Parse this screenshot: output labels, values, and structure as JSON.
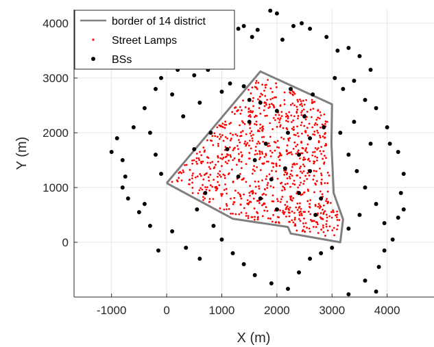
{
  "chart_data": {
    "type": "scatter",
    "xlabel": "X (m)",
    "ylabel": "Y (m)",
    "xlim": [
      -1680,
      4850
    ],
    "ylim": [
      -1000,
      4250
    ],
    "x_ticks": [
      -1000,
      0,
      1000,
      2000,
      3000,
      4000
    ],
    "y_ticks": [
      0,
      1000,
      2000,
      3000,
      4000
    ],
    "grid": true,
    "legend_placement": "top-left",
    "legend": [
      {
        "key": "border",
        "label": "border of 14 district",
        "color": "#7f7f7f"
      },
      {
        "key": "lamps",
        "label": "Street Lamps",
        "color": "#ff0000"
      },
      {
        "key": "bss",
        "label": "BSs",
        "color": "#000000"
      }
    ],
    "series": [
      {
        "name": "border of 14 district",
        "kind": "line",
        "color": "#7f7f7f",
        "points": [
          [
            0,
            1080
          ],
          [
            1700,
            3120
          ],
          [
            3000,
            2520
          ],
          [
            2990,
            1800
          ],
          [
            3030,
            900
          ],
          [
            3200,
            420
          ],
          [
            3150,
            0
          ],
          [
            2250,
            160
          ],
          [
            2200,
            280
          ],
          [
            1200,
            430
          ],
          [
            0,
            1080
          ]
        ]
      },
      {
        "name": "Street Lamps",
        "kind": "scatter",
        "color": "#ff0000",
        "count": 900,
        "seed": 14,
        "polygon": [
          [
            60,
            1090
          ],
          [
            1690,
            3040
          ],
          [
            2930,
            2480
          ],
          [
            2920,
            1800
          ],
          [
            2970,
            900
          ],
          [
            3140,
            430
          ],
          [
            3090,
            70
          ],
          [
            2280,
            200
          ],
          [
            2220,
            320
          ],
          [
            1210,
            470
          ],
          [
            60,
            1090
          ]
        ]
      },
      {
        "name": "BSs",
        "kind": "scatter",
        "color": "#000000",
        "points": [
          [
            1880,
            4230
          ],
          [
            2000,
            4180
          ],
          [
            1300,
            3900
          ],
          [
            1400,
            3950
          ],
          [
            1550,
            3750
          ],
          [
            1650,
            3880
          ],
          [
            2100,
            3700
          ],
          [
            2300,
            3950
          ],
          [
            2450,
            4000
          ],
          [
            2600,
            3900
          ],
          [
            2900,
            3750
          ],
          [
            3100,
            3500
          ],
          [
            3300,
            3550
          ],
          [
            3500,
            3400
          ],
          [
            3700,
            3150
          ],
          [
            -100,
            3000
          ],
          [
            200,
            3150
          ],
          [
            500,
            3050
          ],
          [
            750,
            3150
          ],
          [
            900,
            3200
          ],
          [
            1000,
            2750
          ],
          [
            1150,
            2900
          ],
          [
            1400,
            2850
          ],
          [
            1500,
            2600
          ],
          [
            1700,
            2550
          ],
          [
            2000,
            2400
          ],
          [
            2250,
            2800
          ],
          [
            2500,
            2300
          ],
          [
            2650,
            2700
          ],
          [
            2850,
            2100
          ],
          [
            3050,
            3000
          ],
          [
            3200,
            2800
          ],
          [
            3400,
            2950
          ],
          [
            3600,
            2600
          ],
          [
            3800,
            2450
          ],
          [
            4000,
            2100
          ],
          [
            4050,
            1800
          ],
          [
            4200,
            1650
          ],
          [
            4300,
            1250
          ],
          [
            4250,
            900
          ],
          [
            4200,
            450
          ],
          [
            3950,
            350
          ],
          [
            3800,
            700
          ],
          [
            3600,
            1000
          ],
          [
            3450,
            1300
          ],
          [
            3300,
            1600
          ],
          [
            3150,
            2000
          ],
          [
            3400,
            2200
          ],
          [
            -1000,
            1650
          ],
          [
            -900,
            1900
          ],
          [
            -800,
            1500
          ],
          [
            -750,
            1200
          ],
          [
            -600,
            2100
          ],
          [
            -400,
            2450
          ],
          [
            -300,
            2000
          ],
          [
            -200,
            1600
          ],
          [
            -100,
            1250
          ],
          [
            -700,
            800
          ],
          [
            -500,
            550
          ],
          [
            -300,
            300
          ],
          [
            -150,
            -150
          ],
          [
            100,
            200
          ],
          [
            350,
            -100
          ],
          [
            550,
            600
          ],
          [
            700,
            900
          ],
          [
            850,
            300
          ],
          [
            1000,
            50
          ],
          [
            1200,
            -200
          ],
          [
            1400,
            -400
          ],
          [
            1600,
            -600
          ],
          [
            1900,
            -750
          ],
          [
            2200,
            -850
          ],
          [
            2400,
            -550
          ],
          [
            2600,
            -300
          ],
          [
            2800,
            -200
          ],
          [
            3000,
            -100
          ],
          [
            3300,
            -950
          ],
          [
            3600,
            -700
          ],
          [
            3800,
            -900
          ],
          [
            3850,
            -450
          ],
          [
            3950,
            -150
          ],
          [
            4100,
            50
          ],
          [
            500,
            1700
          ],
          [
            800,
            2000
          ],
          [
            1100,
            1700
          ],
          [
            1300,
            1200
          ],
          [
            1600,
            1500
          ],
          [
            1900,
            1150
          ],
          [
            2150,
            1350
          ],
          [
            2400,
            1600
          ],
          [
            2600,
            1300
          ],
          [
            2800,
            800
          ],
          [
            1700,
            800
          ],
          [
            2000,
            600
          ],
          [
            2400,
            900
          ],
          [
            2700,
            500
          ],
          [
            1500,
            2200
          ],
          [
            1800,
            1800
          ],
          [
            2200,
            2000
          ],
          [
            2600,
            1900
          ],
          [
            300,
            2300
          ],
          [
            600,
            2550
          ],
          [
            -400,
            700
          ],
          [
            -800,
            1000
          ],
          [
            4300,
            600
          ],
          [
            3700,
            1800
          ],
          [
            3500,
            500
          ],
          [
            3300,
            250
          ],
          [
            600,
            -300
          ],
          [
            -200,
            2800
          ],
          [
            100,
            2700
          ]
        ]
      }
    ]
  }
}
